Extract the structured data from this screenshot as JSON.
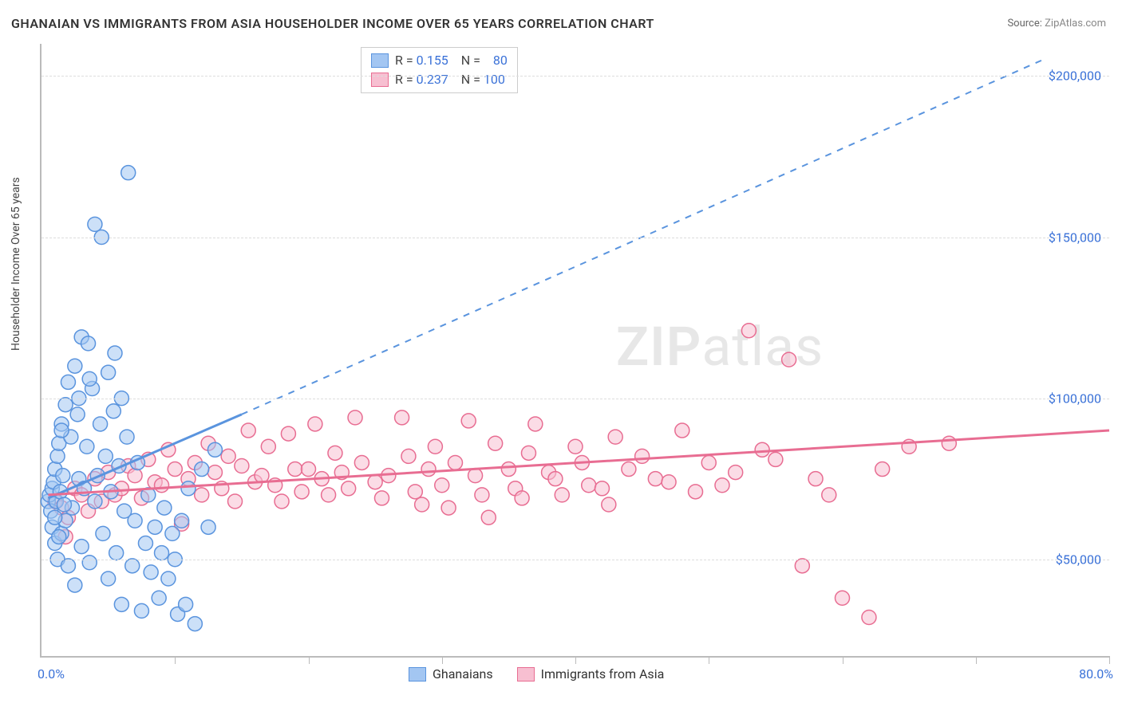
{
  "title": "GHANAIAN VS IMMIGRANTS FROM ASIA HOUSEHOLDER INCOME OVER 65 YEARS CORRELATION CHART",
  "source_label": "Source:",
  "source_value": "ZipAtlas.com",
  "ylabel": "Householder Income Over 65 years",
  "watermark_bold": "ZIP",
  "watermark_rest": "atlas",
  "chart": {
    "type": "scatter",
    "xlim": [
      0,
      80
    ],
    "ylim": [
      20000,
      210000
    ],
    "xmin_label": "0.0%",
    "xmax_label": "80.0%",
    "ytick_labels": [
      "$50,000",
      "$100,000",
      "$150,000",
      "$200,000"
    ],
    "ytick_values": [
      50000,
      100000,
      150000,
      200000
    ],
    "xtick_positions": [
      10,
      20,
      30,
      40,
      50,
      60,
      70,
      80
    ],
    "grid_color": "#dddddd",
    "axis_color": "#bbbbbb",
    "background_color": "#ffffff",
    "tick_label_color": "#3b72d8",
    "marker_radius": 9,
    "marker_opacity": 0.55,
    "series": [
      {
        "name": "Ghanaians",
        "color_fill": "#a3c6f2",
        "color_stroke": "#5a94de",
        "R": "0.155",
        "N": "80",
        "trend_solid": {
          "x1": 0.5,
          "y1": 69000,
          "x2": 15,
          "y2": 95000
        },
        "trend_dashed": {
          "x1": 15,
          "y1": 95000,
          "x2": 75,
          "y2": 205000
        },
        "points": [
          [
            0.5,
            68000
          ],
          [
            0.6,
            70000
          ],
          [
            0.7,
            65000
          ],
          [
            0.8,
            72000
          ],
          [
            0.8,
            60000
          ],
          [
            0.9,
            74000
          ],
          [
            1.0,
            78000
          ],
          [
            1.0,
            55000
          ],
          [
            1.1,
            68000
          ],
          [
            1.2,
            82000
          ],
          [
            1.2,
            50000
          ],
          [
            1.3,
            86000
          ],
          [
            1.4,
            71000
          ],
          [
            1.5,
            92000
          ],
          [
            1.5,
            58000
          ],
          [
            1.6,
            76000
          ],
          [
            1.8,
            98000
          ],
          [
            1.8,
            62000
          ],
          [
            2.0,
            105000
          ],
          [
            2.0,
            48000
          ],
          [
            2.2,
            88000
          ],
          [
            2.3,
            66000
          ],
          [
            2.5,
            110000
          ],
          [
            2.5,
            42000
          ],
          [
            2.7,
            95000
          ],
          [
            2.8,
            75000
          ],
          [
            3.0,
            119000
          ],
          [
            3.0,
            54000
          ],
          [
            3.2,
            72000
          ],
          [
            3.4,
            85000
          ],
          [
            3.5,
            117000
          ],
          [
            3.6,
            49000
          ],
          [
            3.8,
            103000
          ],
          [
            4.0,
            68000
          ],
          [
            4.0,
            154000
          ],
          [
            4.2,
            76000
          ],
          [
            4.4,
            92000
          ],
          [
            4.5,
            150000
          ],
          [
            4.6,
            58000
          ],
          [
            4.8,
            82000
          ],
          [
            5.0,
            108000
          ],
          [
            5.0,
            44000
          ],
          [
            5.2,
            71000
          ],
          [
            5.4,
            96000
          ],
          [
            5.5,
            114000
          ],
          [
            5.6,
            52000
          ],
          [
            5.8,
            79000
          ],
          [
            6.0,
            100000
          ],
          [
            6.0,
            36000
          ],
          [
            6.2,
            65000
          ],
          [
            6.4,
            88000
          ],
          [
            6.5,
            170000
          ],
          [
            6.8,
            48000
          ],
          [
            7.0,
            62000
          ],
          [
            7.2,
            80000
          ],
          [
            7.5,
            34000
          ],
          [
            7.8,
            55000
          ],
          [
            8.0,
            70000
          ],
          [
            8.2,
            46000
          ],
          [
            8.5,
            60000
          ],
          [
            8.8,
            38000
          ],
          [
            9.0,
            52000
          ],
          [
            9.2,
            66000
          ],
          [
            9.5,
            44000
          ],
          [
            9.8,
            58000
          ],
          [
            10.0,
            50000
          ],
          [
            10.2,
            33000
          ],
          [
            10.5,
            62000
          ],
          [
            10.8,
            36000
          ],
          [
            11.0,
            72000
          ],
          [
            11.5,
            30000
          ],
          [
            12.0,
            78000
          ],
          [
            12.5,
            60000
          ],
          [
            13.0,
            84000
          ],
          [
            1.5,
            90000
          ],
          [
            2.8,
            100000
          ],
          [
            3.6,
            106000
          ],
          [
            1.0,
            63000
          ],
          [
            1.3,
            57000
          ],
          [
            1.7,
            67000
          ]
        ]
      },
      {
        "name": "Immigrants from Asia",
        "color_fill": "#f7bfd1",
        "color_stroke": "#e86d92",
        "R": "0.237",
        "N": "100",
        "trend_solid": {
          "x1": 0.5,
          "y1": 70000,
          "x2": 80,
          "y2": 90000
        },
        "trend_dashed": null,
        "points": [
          [
            1.0,
            68000
          ],
          [
            1.5,
            66000
          ],
          [
            2.0,
            63000
          ],
          [
            2.5,
            72000
          ],
          [
            3.0,
            70000
          ],
          [
            3.5,
            65000
          ],
          [
            4.0,
            75000
          ],
          [
            4.5,
            68000
          ],
          [
            5.0,
            77000
          ],
          [
            5.5,
            70000
          ],
          [
            6.0,
            72000
          ],
          [
            6.5,
            79000
          ],
          [
            7.0,
            76000
          ],
          [
            7.5,
            69000
          ],
          [
            8.0,
            81000
          ],
          [
            8.5,
            74000
          ],
          [
            9.0,
            73000
          ],
          [
            9.5,
            84000
          ],
          [
            10.0,
            78000
          ],
          [
            10.5,
            61000
          ],
          [
            11.0,
            75000
          ],
          [
            11.5,
            80000
          ],
          [
            12.0,
            70000
          ],
          [
            12.5,
            86000
          ],
          [
            13.0,
            77000
          ],
          [
            13.5,
            72000
          ],
          [
            14.0,
            82000
          ],
          [
            14.5,
            68000
          ],
          [
            15.0,
            79000
          ],
          [
            15.5,
            90000
          ],
          [
            16.0,
            74000
          ],
          [
            16.5,
            76000
          ],
          [
            17.0,
            85000
          ],
          [
            17.5,
            73000
          ],
          [
            18.0,
            68000
          ],
          [
            18.5,
            89000
          ],
          [
            19.0,
            78000
          ],
          [
            19.5,
            71000
          ],
          [
            20.0,
            78000
          ],
          [
            20.5,
            92000
          ],
          [
            21.0,
            75000
          ],
          [
            21.5,
            70000
          ],
          [
            22.0,
            83000
          ],
          [
            22.5,
            77000
          ],
          [
            23.0,
            72000
          ],
          [
            23.5,
            94000
          ],
          [
            24.0,
            80000
          ],
          [
            25.0,
            74000
          ],
          [
            25.5,
            69000
          ],
          [
            26.0,
            76000
          ],
          [
            27.0,
            94000
          ],
          [
            27.5,
            82000
          ],
          [
            28.0,
            71000
          ],
          [
            28.5,
            67000
          ],
          [
            29.0,
            78000
          ],
          [
            29.5,
            85000
          ],
          [
            30.0,
            73000
          ],
          [
            30.5,
            66000
          ],
          [
            31.0,
            80000
          ],
          [
            32.0,
            93000
          ],
          [
            32.5,
            76000
          ],
          [
            33.0,
            70000
          ],
          [
            33.5,
            63000
          ],
          [
            34.0,
            86000
          ],
          [
            35.0,
            78000
          ],
          [
            35.5,
            72000
          ],
          [
            36.0,
            69000
          ],
          [
            36.5,
            83000
          ],
          [
            37.0,
            92000
          ],
          [
            38.0,
            77000
          ],
          [
            38.5,
            75000
          ],
          [
            39.0,
            70000
          ],
          [
            40.0,
            85000
          ],
          [
            40.5,
            80000
          ],
          [
            41.0,
            73000
          ],
          [
            42.0,
            72000
          ],
          [
            42.5,
            67000
          ],
          [
            43.0,
            88000
          ],
          [
            44.0,
            78000
          ],
          [
            45.0,
            82000
          ],
          [
            46.0,
            75000
          ],
          [
            47.0,
            74000
          ],
          [
            48.0,
            90000
          ],
          [
            49.0,
            71000
          ],
          [
            50.0,
            80000
          ],
          [
            51.0,
            73000
          ],
          [
            52.0,
            77000
          ],
          [
            53.0,
            121000
          ],
          [
            54.0,
            84000
          ],
          [
            55.0,
            81000
          ],
          [
            56.0,
            112000
          ],
          [
            57.0,
            48000
          ],
          [
            58.0,
            75000
          ],
          [
            59.0,
            70000
          ],
          [
            60.0,
            38000
          ],
          [
            62.0,
            32000
          ],
          [
            63.0,
            78000
          ],
          [
            65.0,
            85000
          ],
          [
            68.0,
            86000
          ],
          [
            1.8,
            57000
          ]
        ]
      }
    ]
  },
  "legend_box": {
    "R_label": "R =",
    "N_label": "N ="
  },
  "bottom_legend": {
    "label1": "Ghanaians",
    "label2": "Immigrants from Asia"
  }
}
